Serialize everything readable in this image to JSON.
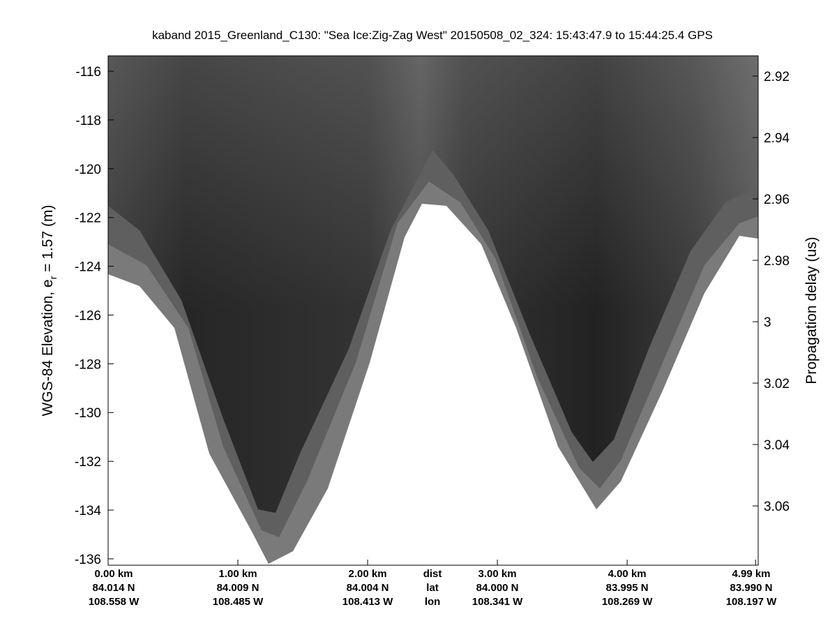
{
  "chart_data": {
    "type": "echogram",
    "title": "kaband 2015_Greenland_C130: \"Sea Ice:Zig-Zag West\"  20150508_02_324: 15:43:47.9 to 15:44:25.4 GPS",
    "ylabel": [
      "WGS-84 Elevation, e",
      "r",
      " = 1.57 (m)"
    ],
    "y2label": "Propagation delay (us)",
    "ylim": [
      -136.26,
      -115.37
    ],
    "yticks": [
      -136,
      -134,
      -132,
      -130,
      -128,
      -126,
      -124,
      -122,
      -120,
      -118,
      -116
    ],
    "y2lim": [
      3.0793,
      2.9134
    ],
    "y2ticks": [
      3.06,
      3.04,
      3.02,
      3,
      2.98,
      2.96,
      2.94,
      2.92
    ],
    "xlim": [
      0,
      5.01
    ],
    "xticks": [
      {
        "value": 0,
        "label": "0.00 km"
      },
      {
        "value": 1,
        "label": "1.00 km"
      },
      {
        "value": 2,
        "label": "2.00 km"
      },
      {
        "value": 3,
        "label": "3.00 km"
      },
      {
        "value": 4,
        "label": "4.00 km"
      },
      {
        "value": 4.99,
        "label": "4.99 km"
      }
    ],
    "x_lat_labels": [
      "84.014 N",
      "84.009 N",
      "84.004 N",
      "84.000 N",
      "83.995 N",
      "83.990 N"
    ],
    "x_lon_labels": [
      "108.558 W",
      "108.485 W",
      "108.413 W",
      "108.341 W",
      "108.269 W",
      "108.197 W"
    ],
    "x_row_labels": [
      "dist",
      "lat",
      "lon"
    ]
  }
}
